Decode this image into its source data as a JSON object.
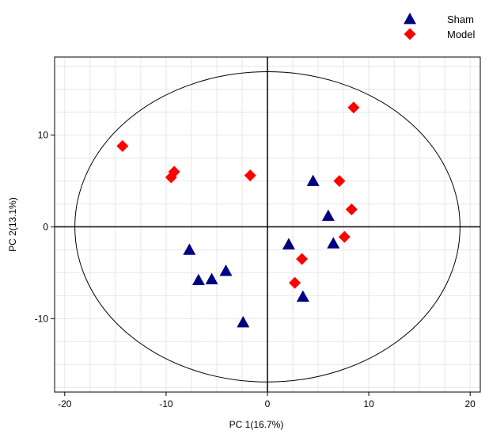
{
  "chart_data": {
    "type": "scatter",
    "title": "",
    "xlabel": "PC 1(16.7%)",
    "ylabel": "PC 2(13.1%)",
    "xlim": [
      -21,
      21
    ],
    "ylim": [
      -18,
      18.5
    ],
    "xticks": [
      -20,
      -10,
      0,
      10,
      20
    ],
    "yticks": [
      -10,
      0,
      10
    ],
    "xtick_labels": [
      "-20",
      "-10",
      "0",
      "10",
      "20"
    ],
    "ytick_labels": [
      "-10",
      "0",
      "10"
    ],
    "grid": true,
    "legend_position": "top-right",
    "ellipse": {
      "center": [
        0,
        0
      ],
      "rx": 19,
      "ry": 16.9
    },
    "series": [
      {
        "name": "Sham",
        "marker": "triangle",
        "color": "#000080",
        "points": [
          [
            4.5,
            5.0
          ],
          [
            6.0,
            1.2
          ],
          [
            6.5,
            -1.8
          ],
          [
            2.1,
            -1.9
          ],
          [
            3.5,
            -7.6
          ],
          [
            -7.7,
            -2.5
          ],
          [
            -6.8,
            -5.8
          ],
          [
            -5.5,
            -5.7
          ],
          [
            -4.1,
            -4.8
          ],
          [
            -2.4,
            -10.4
          ]
        ]
      },
      {
        "name": "Model",
        "marker": "diamond",
        "color": "#ff0000",
        "points": [
          [
            8.5,
            13.0
          ],
          [
            -14.3,
            8.8
          ],
          [
            -9.5,
            5.4
          ],
          [
            -9.2,
            6.0
          ],
          [
            -1.7,
            5.6
          ],
          [
            7.1,
            5.0
          ],
          [
            8.3,
            1.9
          ],
          [
            7.6,
            -1.1
          ],
          [
            3.4,
            -3.5
          ],
          [
            2.7,
            -6.1
          ]
        ]
      }
    ]
  }
}
